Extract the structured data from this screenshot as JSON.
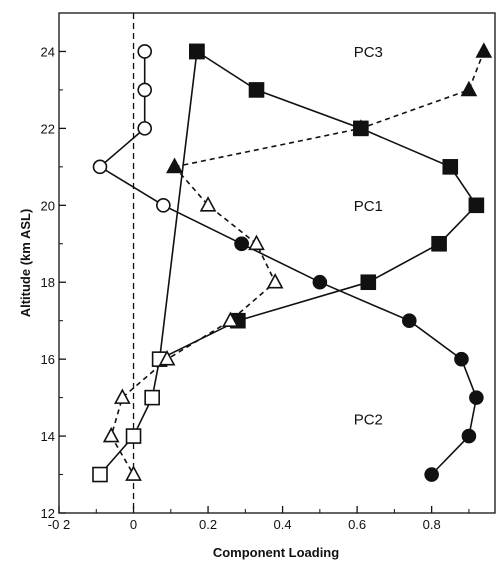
{
  "chart_data": {
    "type": "line",
    "title": "",
    "xlabel": "Component Loading",
    "ylabel": "Altitude (km ASL)",
    "xlim": [
      -0.2,
      0.97
    ],
    "ylim": [
      12,
      25
    ],
    "x_ticks": [
      -0.2,
      0,
      0.2,
      0.4,
      0.6,
      0.8
    ],
    "x_tick_labels": [
      "-0 2",
      "0",
      "0.2",
      "0.4",
      "0.6",
      "0.8"
    ],
    "y_ticks": [
      12,
      14,
      16,
      18,
      20,
      22,
      24
    ],
    "y_tick_labels": [
      "12",
      "14",
      "16",
      "18",
      "20",
      "22",
      "24"
    ],
    "grid": false,
    "zero_line": {
      "x": 0,
      "style": "dashed"
    },
    "series": [
      {
        "marker": "circle-open",
        "line": "solid",
        "points": [
          [
            0.03,
            24
          ],
          [
            0.03,
            23
          ],
          [
            0.03,
            22
          ],
          [
            -0.09,
            21
          ],
          [
            0.08,
            20
          ],
          [
            0.29,
            19
          ]
        ]
      },
      {
        "marker": "circle-filled",
        "line": "solid",
        "points": [
          [
            0.29,
            19
          ],
          [
            0.5,
            18
          ],
          [
            0.74,
            17
          ],
          [
            0.88,
            16
          ],
          [
            0.92,
            15
          ],
          [
            0.9,
            14
          ],
          [
            0.8,
            13
          ]
        ]
      },
      {
        "marker": "square-open",
        "line": "solid",
        "points": [
          [
            0.17,
            24
          ],
          [
            0.07,
            16
          ],
          [
            0.05,
            15
          ],
          [
            0.0,
            14
          ],
          [
            -0.09,
            13
          ]
        ]
      },
      {
        "marker": "square-filled",
        "line": "solid",
        "points": [
          [
            0.17,
            24
          ],
          [
            0.33,
            23
          ],
          [
            0.61,
            22
          ],
          [
            0.85,
            21
          ],
          [
            0.92,
            20
          ],
          [
            0.82,
            19
          ],
          [
            0.63,
            18
          ],
          [
            0.28,
            17
          ]
        ]
      },
      {
        "marker": "triangle-open",
        "line": "dashed",
        "points": [
          [
            0.11,
            21
          ],
          [
            0.2,
            20
          ],
          [
            0.33,
            19
          ],
          [
            0.38,
            18
          ],
          [
            0.26,
            17
          ],
          [
            0.09,
            16
          ],
          [
            -0.03,
            15
          ],
          [
            -0.06,
            14
          ],
          [
            -0.0,
            13
          ]
        ]
      },
      {
        "marker": "triangle-filled",
        "line": "dashed",
        "points": [
          [
            0.11,
            21
          ],
          [
            0.61,
            22
          ],
          [
            0.9,
            23
          ],
          [
            0.94,
            24
          ]
        ]
      }
    ],
    "connectors": [
      {
        "line": "solid",
        "points": [
          [
            0.28,
            17
          ],
          [
            0.07,
            16
          ]
        ]
      }
    ],
    "annotations": [
      {
        "text": "PC3",
        "x": 0.63,
        "y": 23.85
      },
      {
        "text": "PC1",
        "x": 0.63,
        "y": 19.85
      },
      {
        "text": "PC2",
        "x": 0.63,
        "y": 14.3
      }
    ]
  }
}
